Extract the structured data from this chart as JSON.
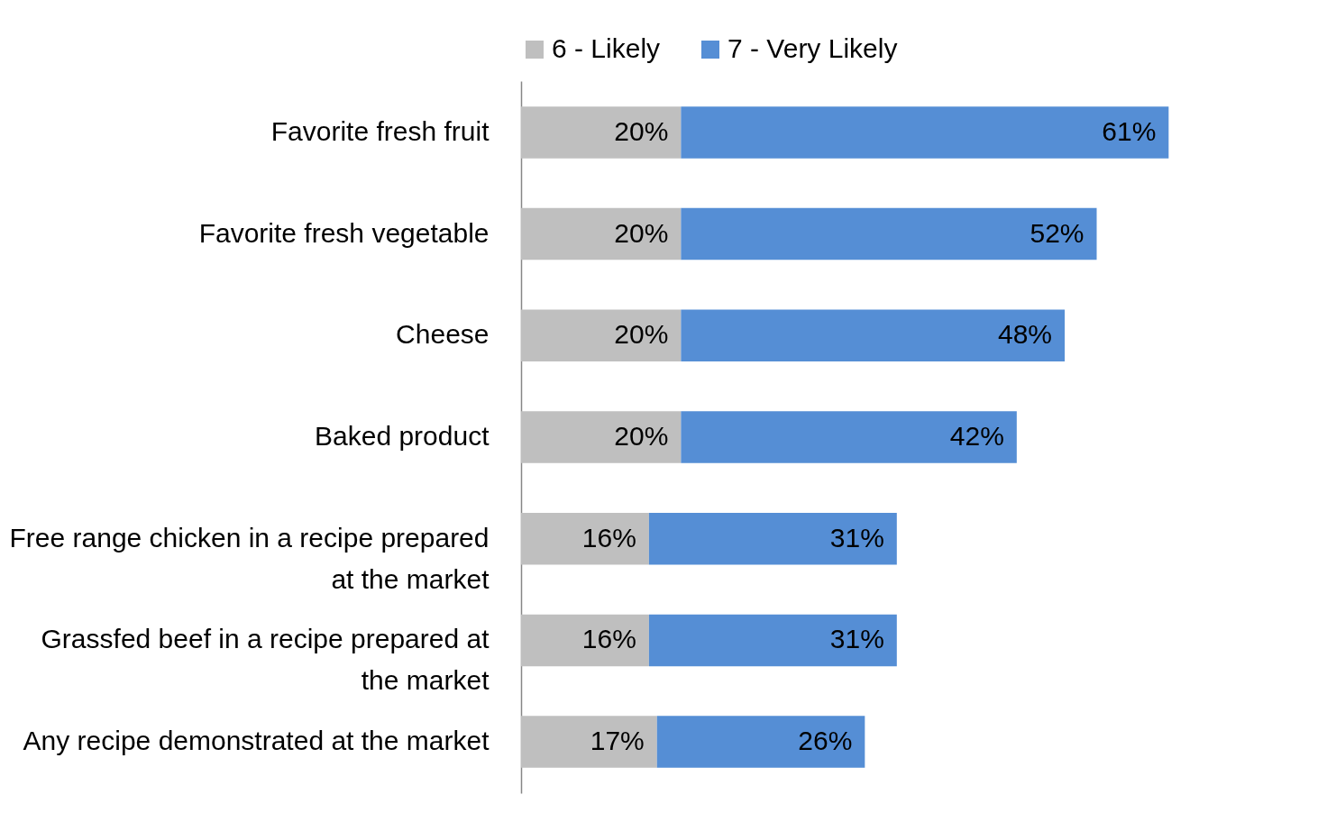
{
  "chart_data": {
    "type": "bar",
    "orientation": "horizontal",
    "stacked": true,
    "legend": "top",
    "grid": false,
    "categories": [
      "Favorite fresh fruit",
      "Favorite fresh vegetable",
      "Cheese",
      "Baked product",
      "Free range chicken in a recipe prepared at the market",
      "Grassfed beef in a recipe prepared at the market",
      "Any recipe demonstrated at the market"
    ],
    "series": [
      {
        "name": "6 - Likely",
        "color": "#bfbfbf",
        "values": [
          20,
          20,
          20,
          20,
          16,
          16,
          17
        ],
        "value_labels": [
          "20%",
          "20%",
          "20%",
          "20%",
          "16%",
          "16%",
          "17%"
        ]
      },
      {
        "name": "7 - Very Likely",
        "color": "#558ed5",
        "values": [
          61,
          52,
          48,
          42,
          31,
          31,
          26
        ],
        "value_labels": [
          "61%",
          "52%",
          "48%",
          "42%",
          "31%",
          "31%",
          "26%"
        ]
      }
    ]
  }
}
